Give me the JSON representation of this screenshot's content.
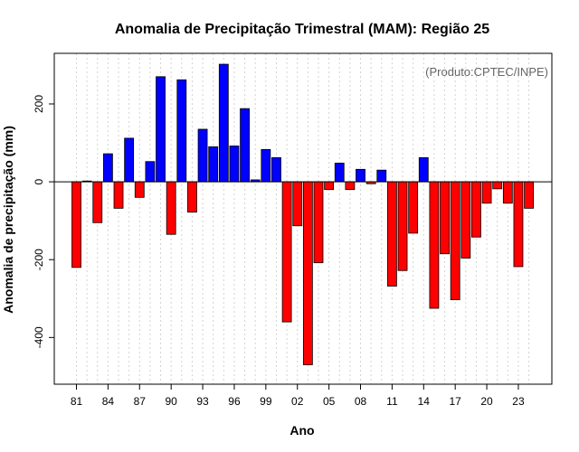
{
  "chart_data": {
    "type": "bar",
    "title": "Anomalia de Precipitação Trimestral (MAM): Região 25",
    "xlabel": "Ano",
    "ylabel": "Anomalia de precipitação (mm)",
    "credit": "(Produto:CPTEC/INPE)",
    "ylim": [
      -520,
      330
    ],
    "yticks": [
      -400,
      -200,
      0,
      200
    ],
    "xtick_years": [
      1981,
      1984,
      1987,
      1990,
      1993,
      1996,
      1999,
      2002,
      2005,
      2008,
      2011,
      2014,
      2017,
      2020,
      2023
    ],
    "xtick_labels": [
      "81",
      "84",
      "87",
      "90",
      "93",
      "96",
      "99",
      "02",
      "05",
      "08",
      "11",
      "14",
      "17",
      "20",
      "23"
    ],
    "grid": true,
    "colors": {
      "positive": "#0000ff",
      "negative": "#ff0000"
    },
    "years": [
      1981,
      1982,
      1983,
      1984,
      1985,
      1986,
      1987,
      1988,
      1989,
      1990,
      1991,
      1992,
      1993,
      1994,
      1995,
      1996,
      1997,
      1998,
      1999,
      2000,
      2001,
      2002,
      2003,
      2004,
      2005,
      2006,
      2007,
      2008,
      2009,
      2010,
      2011,
      2012,
      2013,
      2014,
      2015,
      2016,
      2017,
      2018,
      2019,
      2020,
      2021,
      2022,
      2023,
      2024
    ],
    "values": [
      -220,
      2,
      -105,
      72,
      -68,
      112,
      -40,
      52,
      270,
      -135,
      262,
      -78,
      135,
      90,
      302,
      92,
      188,
      5,
      83,
      62,
      -360,
      -113,
      -470,
      -208,
      -20,
      48,
      -20,
      32,
      -5,
      30,
      -268,
      -228,
      -132,
      62,
      -325,
      -185,
      -303,
      -196,
      -142,
      -55,
      -18,
      -55,
      -218,
      -68
    ]
  }
}
